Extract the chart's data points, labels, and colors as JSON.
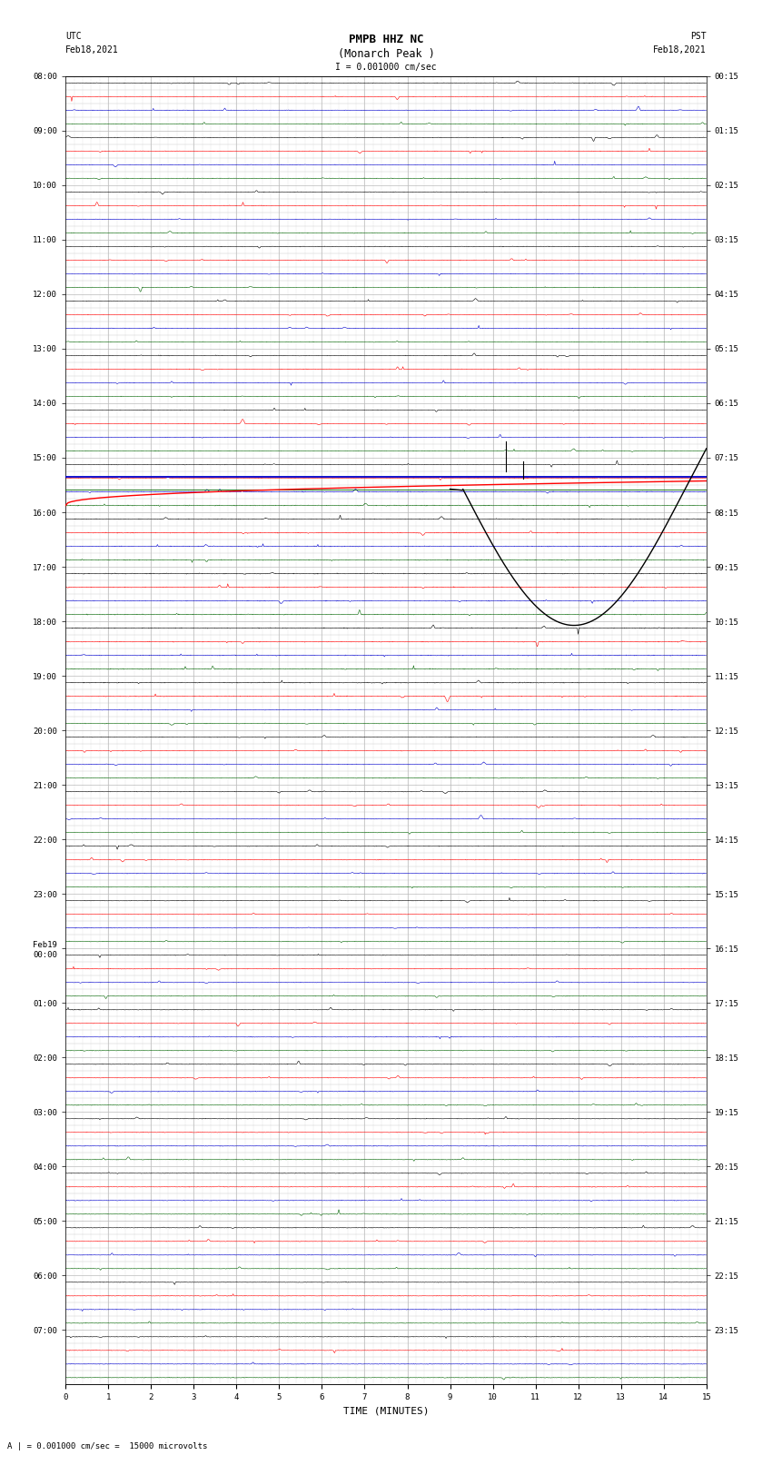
{
  "title_line1": "PMPB HHZ NC",
  "title_line2": "(Monarch Peak )",
  "scale_label": "I = 0.001000 cm/sec",
  "bottom_label": "A | = 0.001000 cm/sec =  15000 microvolts",
  "xlabel": "TIME (MINUTES)",
  "left_times_utc": [
    "08:00",
    "",
    "",
    "",
    "09:00",
    "",
    "",
    "",
    "10:00",
    "",
    "",
    "",
    "11:00",
    "",
    "",
    "",
    "12:00",
    "",
    "",
    "",
    "13:00",
    "",
    "",
    "",
    "14:00",
    "",
    "",
    "",
    "15:00",
    "",
    "",
    "",
    "16:00",
    "",
    "",
    "",
    "17:00",
    "",
    "",
    "",
    "18:00",
    "",
    "",
    "",
    "19:00",
    "",
    "",
    "",
    "20:00",
    "",
    "",
    "",
    "21:00",
    "",
    "",
    "",
    "22:00",
    "",
    "",
    "",
    "23:00",
    "",
    "",
    "",
    "Feb19\n00:00",
    "",
    "",
    "",
    "01:00",
    "",
    "",
    "",
    "02:00",
    "",
    "",
    "",
    "03:00",
    "",
    "",
    "",
    "04:00",
    "",
    "",
    "",
    "05:00",
    "",
    "",
    "",
    "06:00",
    "",
    "",
    "",
    "07:00",
    "",
    "",
    ""
  ],
  "right_times_pst": [
    "00:15",
    "",
    "",
    "",
    "01:15",
    "",
    "",
    "",
    "02:15",
    "",
    "",
    "",
    "03:15",
    "",
    "",
    "",
    "04:15",
    "",
    "",
    "",
    "05:15",
    "",
    "",
    "",
    "06:15",
    "",
    "",
    "",
    "07:15",
    "",
    "",
    "",
    "08:15",
    "",
    "",
    "",
    "09:15",
    "",
    "",
    "",
    "10:15",
    "",
    "",
    "",
    "11:15",
    "",
    "",
    "",
    "12:15",
    "",
    "",
    "",
    "13:15",
    "",
    "",
    "",
    "14:15",
    "",
    "",
    "",
    "15:15",
    "",
    "",
    "",
    "16:15",
    "",
    "",
    "",
    "17:15",
    "",
    "",
    "",
    "18:15",
    "",
    "",
    "",
    "19:15",
    "",
    "",
    "",
    "20:15",
    "",
    "",
    "",
    "21:15",
    "",
    "",
    "",
    "22:15",
    "",
    "",
    "",
    "23:15",
    "",
    "",
    ""
  ],
  "num_rows": 96,
  "xmin": 0,
  "xmax": 15,
  "bg_color": "#ffffff",
  "grid_color": "#bbbbbb",
  "colors_cycle": [
    "#000000",
    "#ff0000",
    "#0000cc",
    "#006400"
  ],
  "title_fontsize": 9,
  "tick_fontsize": 6.5,
  "label_fontsize": 8
}
